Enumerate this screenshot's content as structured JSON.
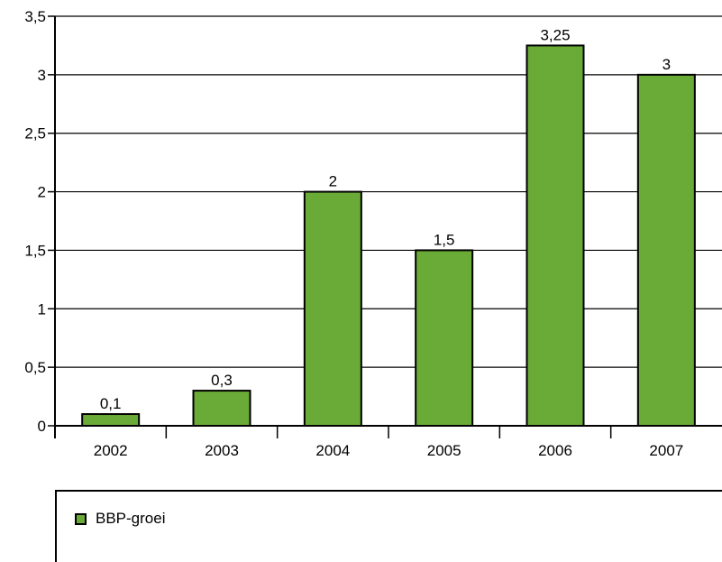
{
  "chart_data": {
    "type": "bar",
    "categories": [
      "2002",
      "2003",
      "2004",
      "2005",
      "2006",
      "2007"
    ],
    "values": [
      0.1,
      0.3,
      2,
      1.5,
      3.25,
      3
    ],
    "value_labels": [
      "0,1",
      "0,3",
      "2",
      "1,5",
      "3,25",
      "3"
    ],
    "y_ticks": [
      "0",
      "0,5",
      "1",
      "1,5",
      "2",
      "2,5",
      "3",
      "3,5"
    ],
    "ylim": [
      0,
      3.5
    ],
    "grid": true,
    "legend_position": "bottom",
    "series": [
      {
        "name": "BBP-groei",
        "color": "#6aaa37",
        "values": [
          0.1,
          0.3,
          2,
          1.5,
          3.25,
          3
        ]
      }
    ]
  },
  "legend": {
    "label": "BBP-groei"
  },
  "colors": {
    "bar": "#6aaa37",
    "axis": "#000000"
  }
}
